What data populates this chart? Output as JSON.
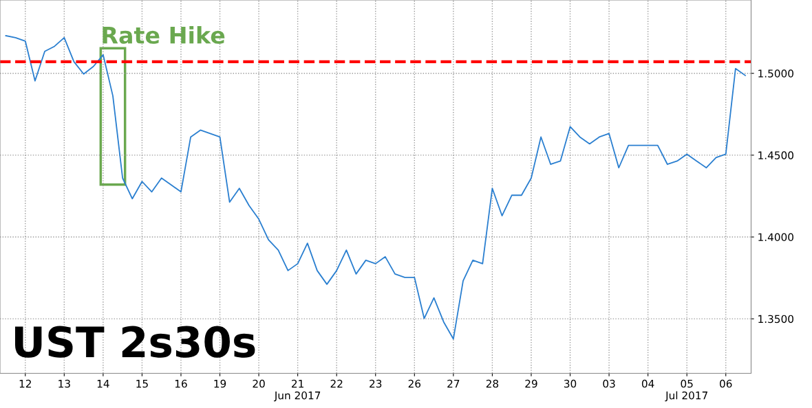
{
  "chart_data": {
    "type": "line",
    "title": "UST 2s30s",
    "categories": [
      null,
      null,
      "12",
      null,
      null,
      null,
      "13",
      null,
      null,
      null,
      "14",
      null,
      null,
      null,
      "15",
      null,
      null,
      null,
      "16",
      null,
      null,
      null,
      "19",
      null,
      null,
      null,
      "20",
      null,
      null,
      null,
      "21\nJun 2017",
      null,
      null,
      null,
      "22",
      null,
      null,
      null,
      "23",
      null,
      null,
      null,
      "26",
      null,
      null,
      null,
      "27",
      null,
      null,
      null,
      "28",
      null,
      null,
      null,
      "29",
      null,
      null,
      null,
      "30",
      null,
      null,
      null,
      "03",
      null,
      null,
      null,
      "04",
      null,
      null,
      null,
      "05\nJul 2017",
      null,
      null,
      null,
      "06",
      null,
      null
    ],
    "series": [
      {
        "color": "#2a7fd0",
        "values": [
          1.523,
          1.5218,
          1.5197,
          1.4954,
          1.5134,
          1.5165,
          1.5218,
          1.5071,
          1.4996,
          1.5042,
          1.5113,
          1.4862,
          1.436,
          1.4234,
          1.4339,
          1.4276,
          1.436,
          1.4318,
          1.4276,
          1.4611,
          1.4653,
          1.4632,
          1.4611,
          1.4213,
          1.4297,
          1.4192,
          1.4109,
          1.3983,
          1.392,
          1.3795,
          1.3837,
          1.3962,
          1.3795,
          1.3711,
          1.3795,
          1.392,
          1.3774,
          1.3858,
          1.3837,
          1.3879,
          1.3774,
          1.3753,
          1.3753,
          1.3502,
          1.3628,
          1.3481,
          1.3377,
          1.3732,
          1.3858,
          1.3837,
          1.4297,
          1.413,
          1.4255,
          1.4255,
          1.436,
          1.4611,
          1.4444,
          1.4464,
          1.4674,
          1.4611,
          1.4569,
          1.4611,
          1.4632,
          1.4423,
          1.456,
          1.456,
          1.456,
          1.456,
          1.4444,
          1.4464,
          1.4506,
          1.4464,
          1.4423,
          1.4485,
          1.4506,
          1.5029,
          1.4987
        ]
      }
    ],
    "ylim": [
      1.3167,
      1.5448
    ],
    "yticks": [
      {
        "value": 1.35,
        "label": "1.3500"
      },
      {
        "value": 1.4,
        "label": "1.4000"
      },
      {
        "value": 1.45,
        "label": "1.4500"
      },
      {
        "value": 1.5,
        "label": "1.5000"
      }
    ],
    "grid": true,
    "line_style": "solid",
    "ref_lines": [
      {
        "axis": "y",
        "value": 1.5071,
        "color": "#ff0000",
        "line_style": "dashed"
      }
    ],
    "annotations": [
      {
        "text": "Rate Hike",
        "x": "14",
        "y": 1.5113
      }
    ]
  }
}
